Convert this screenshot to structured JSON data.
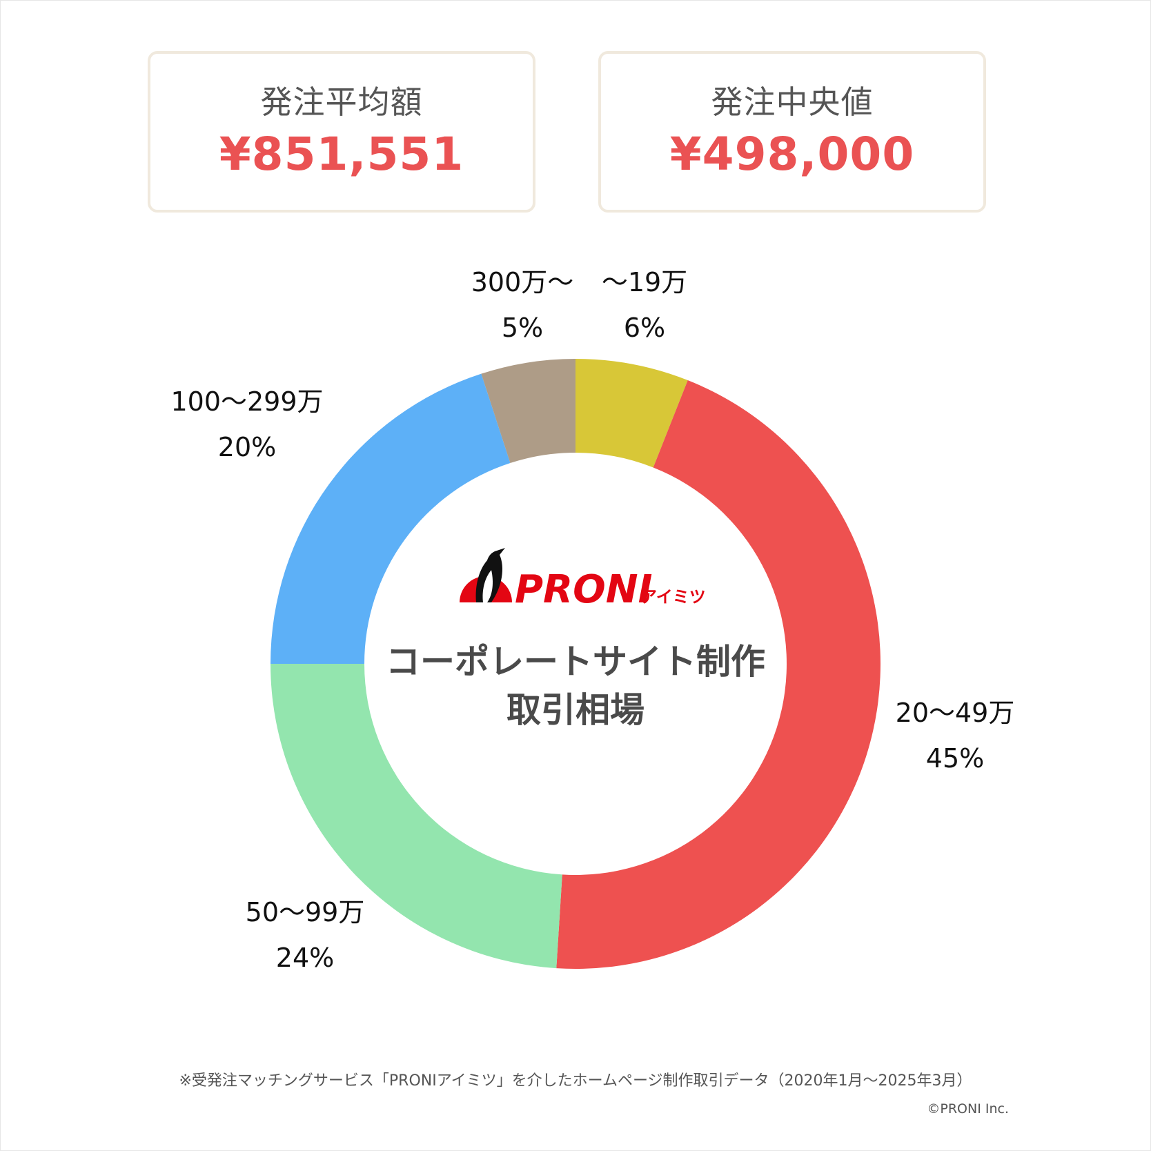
{
  "cards": [
    {
      "label": "発注平均額",
      "value": "¥851,551"
    },
    {
      "label": "発注中央値",
      "value": "¥498,000"
    }
  ],
  "center": {
    "logo": "PRONI",
    "logo_kana": "アイミツ",
    "title_line1": "コーポレートサイト制作",
    "title_line2": "取引相場"
  },
  "chart_data": {
    "type": "pie",
    "categories": [
      "〜19万",
      "20〜49万",
      "50〜99万",
      "100〜299万",
      "300万〜"
    ],
    "values": [
      6,
      45,
      24,
      20,
      5
    ],
    "value_labels": [
      "6%",
      "45%",
      "24%",
      "20%",
      "5%"
    ],
    "colors": [
      "#d8c737",
      "#ee5150",
      "#93e5ae",
      "#5db0f7",
      "#ae9c87"
    ],
    "donut": true,
    "start": "top, clockwise"
  },
  "footnote": "※受発注マッチングサービス「PRONIアイミツ」を介したホームページ制作取引データ（2020年1月〜2025年3月）",
  "copyright": "©PRONI Inc."
}
